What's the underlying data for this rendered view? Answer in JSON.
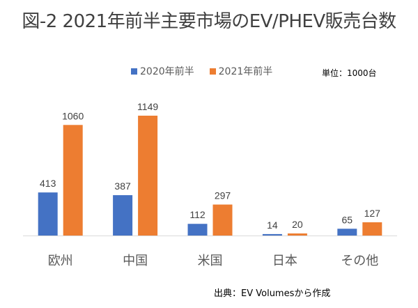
{
  "chart_data": {
    "type": "bar",
    "title": "図-2 2021年前半主要市場のEV/PHEV販売台数",
    "categories": [
      "欧州",
      "中国",
      "米国",
      "日本",
      "その他"
    ],
    "series": [
      {
        "name": "2020年前半",
        "color": "#4472C4",
        "values": [
          413,
          387,
          112,
          14,
          65
        ]
      },
      {
        "name": "2021年前半",
        "color": "#ED7D31",
        "values": [
          1060,
          1149,
          297,
          20,
          127
        ]
      }
    ],
    "unit_note": "単位：1000台",
    "source_note": "出典：EV Volumesから作成",
    "xlabel": "",
    "ylabel": "",
    "ylim": [
      0,
      1250
    ],
    "grid": false,
    "legend_position": "top-center",
    "data_labels": true
  }
}
